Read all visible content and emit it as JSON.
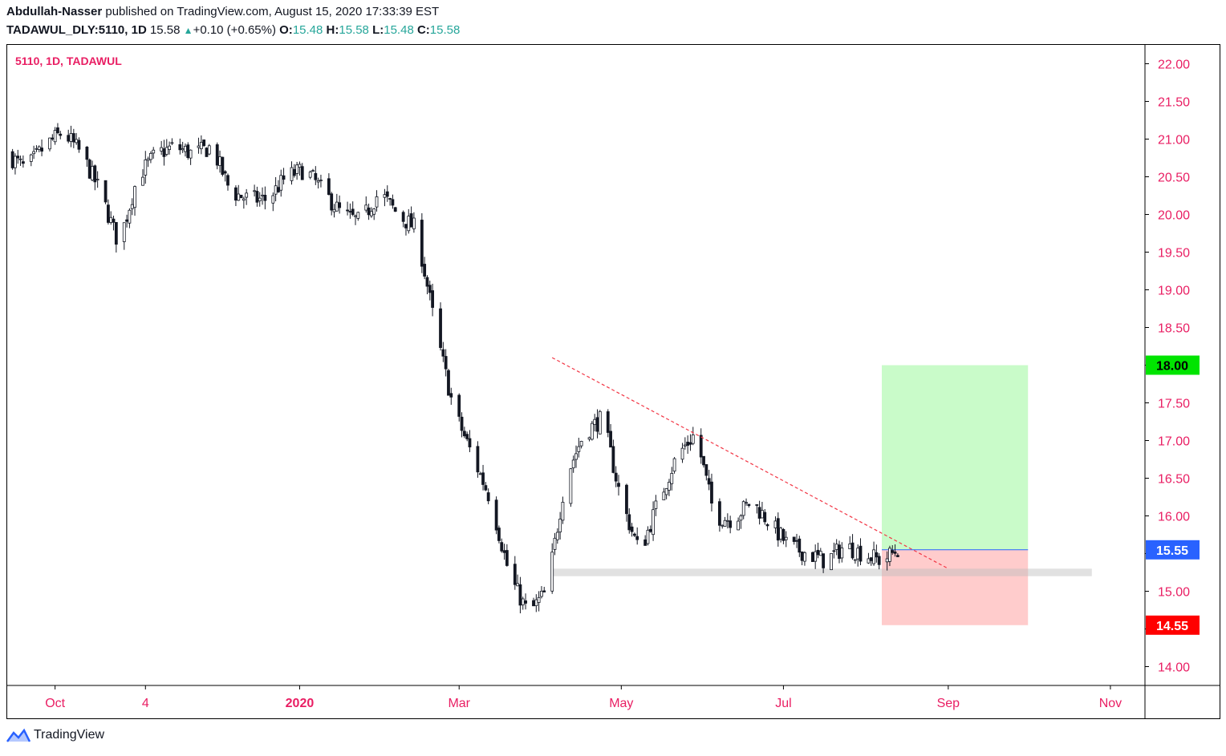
{
  "header": {
    "author": "Abdullah-Nasser",
    "published_text": "published on TradingView.com, August 15, 2020 17:33:39 EST",
    "symbol": "TADAWUL_DLY:5110, 1D",
    "last": "15.58",
    "change": "+0.10 (+0.65%)",
    "o_label": "O:",
    "o": "15.48",
    "h_label": "H:",
    "h": "15.58",
    "l_label": "L:",
    "l": "15.48",
    "c_label": "C:",
    "c": "15.58"
  },
  "footer": {
    "brand": "TradingView"
  },
  "colors": {
    "up": "#26a69a",
    "axis_text": "#e91e63",
    "candle": "#131722",
    "trend": "#f23645",
    "target_zone": "#c9fbc9",
    "stop_zone": "#ffcccc",
    "target_label": "#00e400",
    "stop_label": "#ff0000",
    "price_label": "#2962ff"
  },
  "chart_data": {
    "type": "candlestick",
    "title": "5110, 1D, TADAWUL",
    "ylim": [
      13.75,
      22.25
    ],
    "y_ticks": [
      "22.00",
      "21.50",
      "21.00",
      "20.50",
      "20.00",
      "19.50",
      "19.00",
      "18.50",
      "18.00",
      "17.50",
      "17.00",
      "16.50",
      "16.00",
      "15.50",
      "15.00",
      "14.50",
      "14.00"
    ],
    "x_ticks": [
      "Oct",
      "4",
      "2020",
      "Mar",
      "May",
      "Jul",
      "Sep",
      "Nov"
    ],
    "x_tick_dates": [
      "2019-10-01",
      "2019-11-04",
      "2020-01-01",
      "2020-03-01",
      "2020-05-01",
      "2020-07-01",
      "2020-09-01",
      "2020-11-01"
    ],
    "x_range": [
      "2019-09-13",
      "2020-11-14"
    ],
    "close_series": [
      [
        "2019-09-13",
        20.8
      ],
      [
        "2019-09-20",
        20.6
      ],
      [
        "2019-09-27",
        20.9
      ],
      [
        "2019-10-04",
        21.1
      ],
      [
        "2019-10-11",
        20.8
      ],
      [
        "2019-10-18",
        20.3
      ],
      [
        "2019-10-25",
        19.6
      ],
      [
        "2019-11-01",
        20.5
      ],
      [
        "2019-11-08",
        20.8
      ],
      [
        "2019-11-15",
        20.9
      ],
      [
        "2019-11-22",
        20.8
      ],
      [
        "2019-11-29",
        20.9
      ],
      [
        "2019-12-06",
        20.3
      ],
      [
        "2019-12-13",
        20.2
      ],
      [
        "2019-12-20",
        20.2
      ],
      [
        "2019-12-27",
        20.5
      ],
      [
        "2020-01-03",
        20.6
      ],
      [
        "2020-01-10",
        20.3
      ],
      [
        "2020-01-17",
        20.0
      ],
      [
        "2020-01-24",
        19.9
      ],
      [
        "2020-01-31",
        20.3
      ],
      [
        "2020-02-07",
        20.0
      ],
      [
        "2020-02-14",
        19.8
      ],
      [
        "2020-02-21",
        18.5
      ],
      [
        "2020-02-28",
        17.4
      ],
      [
        "2020-03-06",
        16.8
      ],
      [
        "2020-03-13",
        16.2
      ],
      [
        "2020-03-20",
        15.2
      ],
      [
        "2020-03-27",
        14.7
      ],
      [
        "2020-04-03",
        15.0
      ],
      [
        "2020-04-10",
        16.5
      ],
      [
        "2020-04-17",
        17.1
      ],
      [
        "2020-04-24",
        17.3
      ],
      [
        "2020-05-01",
        16.2
      ],
      [
        "2020-05-08",
        15.5
      ],
      [
        "2020-05-15",
        16.2
      ],
      [
        "2020-05-22",
        16.8
      ],
      [
        "2020-05-29",
        17.1
      ],
      [
        "2020-06-05",
        16.0
      ],
      [
        "2020-06-12",
        15.95
      ],
      [
        "2020-06-19",
        16.2
      ],
      [
        "2020-06-26",
        15.9
      ],
      [
        "2020-07-03",
        15.6
      ],
      [
        "2020-07-10",
        15.5
      ],
      [
        "2020-07-17",
        15.4
      ],
      [
        "2020-07-24",
        15.6
      ],
      [
        "2020-07-31",
        15.5
      ],
      [
        "2020-08-07",
        15.4
      ],
      [
        "2020-08-14",
        15.58
      ]
    ],
    "annotations": {
      "trendline": {
        "from": [
          "2020-04-05",
          18.1
        ],
        "to": [
          "2020-09-01",
          15.3
        ]
      },
      "support_zone": {
        "from": "2020-04-05",
        "to": "2020-10-25",
        "low": 15.2,
        "high": 15.3
      },
      "position": {
        "from": "2020-08-07",
        "to": "2020-10-01",
        "entry": 15.55,
        "target": 18.0,
        "stop": 14.55
      }
    },
    "price_labels": [
      {
        "value": 18.0,
        "text": "18.00",
        "kind": "target"
      },
      {
        "value": 15.55,
        "text": "15.55",
        "kind": "price"
      },
      {
        "value": 14.55,
        "text": "14.55",
        "kind": "stop"
      }
    ]
  }
}
